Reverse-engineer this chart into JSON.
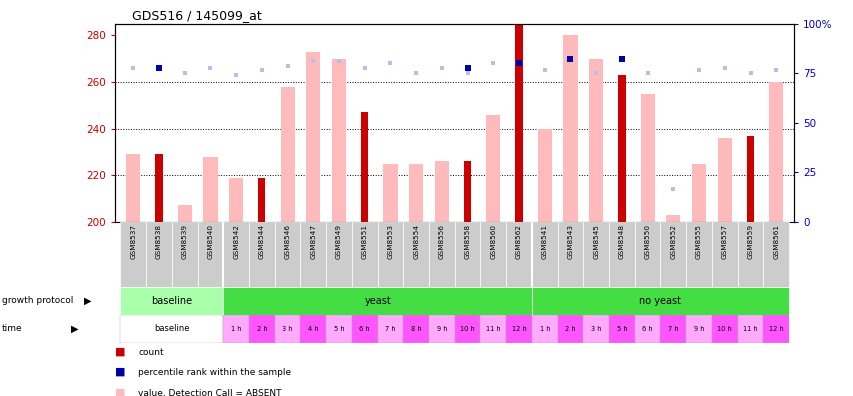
{
  "title": "GDS516 / 145099_at",
  "samples": [
    "GSM8537",
    "GSM8538",
    "GSM8539",
    "GSM8540",
    "GSM8542",
    "GSM8544",
    "GSM8546",
    "GSM8547",
    "GSM8549",
    "GSM8551",
    "GSM8553",
    "GSM8554",
    "GSM8556",
    "GSM8558",
    "GSM8560",
    "GSM8562",
    "GSM8541",
    "GSM8543",
    "GSM8545",
    "GSM8548",
    "GSM8550",
    "GSM8552",
    "GSM8555",
    "GSM8557",
    "GSM8559",
    "GSM8561"
  ],
  "pink_values": [
    229,
    0,
    207,
    228,
    219,
    0,
    258,
    273,
    270,
    0,
    225,
    225,
    226,
    0,
    246,
    0,
    240,
    280,
    270,
    0,
    255,
    203,
    225,
    236,
    0,
    260
  ],
  "red_values": [
    0,
    229,
    0,
    0,
    0,
    219,
    0,
    0,
    0,
    247,
    0,
    0,
    0,
    226,
    0,
    295,
    0,
    0,
    0,
    263,
    0,
    0,
    0,
    0,
    237,
    0
  ],
  "blue_sq_vals": [
    266,
    266,
    264,
    266,
    263,
    265,
    267,
    269,
    269,
    266,
    268,
    264,
    266,
    264,
    268,
    268,
    265,
    270,
    264,
    270,
    264,
    214,
    265,
    266,
    264,
    265
  ],
  "darkblue_sq_vals": [
    0,
    266,
    0,
    0,
    0,
    0,
    0,
    0,
    0,
    0,
    0,
    0,
    0,
    266,
    0,
    268,
    0,
    270,
    0,
    270,
    0,
    0,
    0,
    0,
    0,
    0
  ],
  "ylim_left": [
    200,
    285
  ],
  "ylim_right": [
    0,
    100
  ],
  "yticks_left": [
    200,
    220,
    240,
    260,
    280
  ],
  "yticks_right": [
    0,
    25,
    50,
    75,
    100
  ],
  "ytick_right_labels": [
    "0",
    "25",
    "50",
    "75",
    "100%"
  ],
  "hgrid_vals": [
    220,
    240,
    260
  ],
  "pink_color": "#ffbbbb",
  "red_color": "#cc0000",
  "blue_color": "#bbbbee",
  "darkblue_color": "#0000aa",
  "left_axis_color": "#cc0000",
  "right_axis_color": "#0000cc",
  "baseline_growth_color": "#aaffaa",
  "yeast_color": "#44dd44",
  "noyeast_color": "#44dd44",
  "time_color1": "#ffaaff",
  "time_color2": "#ff55ff",
  "baseline_time_color": "#ffffff",
  "xtick_bg": "#cccccc",
  "yeast_hours": [
    "1 h",
    "2 h",
    "3 h",
    "4 h",
    "5 h",
    "6 h",
    "7 h",
    "8 h",
    "9 h",
    "10 h",
    "11 h",
    "12 h"
  ],
  "noyeast_hours": [
    "1 h",
    "2 h",
    "3 h",
    "5 h",
    "6 h",
    "7 h",
    "9 h",
    "10 h",
    "11 h",
    "12 h"
  ]
}
